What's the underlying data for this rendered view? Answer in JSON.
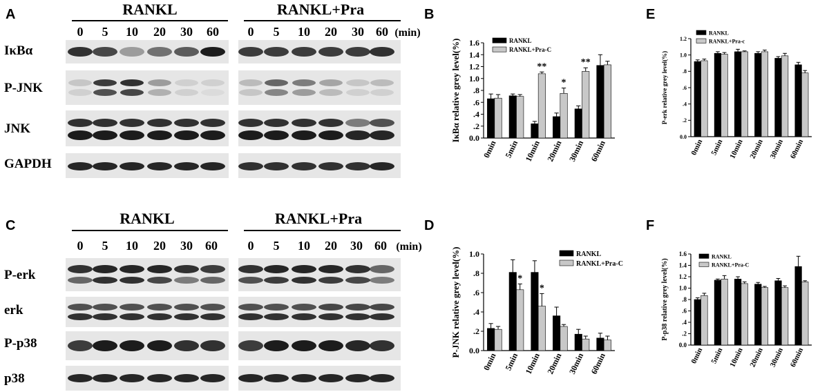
{
  "panels": {
    "A": {
      "letter": "A",
      "conditions": [
        "RANKL",
        "RANKL+Pra"
      ],
      "lanes": [
        "0",
        "5",
        "10",
        "20",
        "30",
        "60"
      ],
      "unit": "(min)",
      "rows": [
        "IκBα",
        "P-JNK",
        "JNK",
        "GAPDH"
      ]
    },
    "C": {
      "letter": "C",
      "conditions": [
        "RANKL",
        "RANKL+Pra"
      ],
      "lanes": [
        "0",
        "5",
        "10",
        "20",
        "30",
        "60"
      ],
      "unit": "(min)",
      "rows": [
        "P-erk",
        "erk",
        "P-p38",
        "p38"
      ]
    }
  },
  "chart_data": [
    {
      "id": "B",
      "letter": "B",
      "type": "bar",
      "categories": [
        "0min",
        "5min",
        "10min",
        "20min",
        "30min",
        "60min"
      ],
      "ylabel": "IκBα relative grey level(%)",
      "yticks": [
        "0.0",
        ".2",
        ".4",
        ".6",
        ".8",
        "1.0",
        "1.2",
        "1.4",
        "1.6"
      ],
      "ylim": [
        0,
        1.6
      ],
      "legend": "top-left",
      "series": [
        {
          "name": "RANKL",
          "color": "#000000",
          "values": [
            0.66,
            0.71,
            0.24,
            0.36,
            0.49,
            1.22
          ],
          "errors": [
            0.08,
            0.03,
            0.04,
            0.06,
            0.05,
            0.18
          ]
        },
        {
          "name": "RANKL+Pra-C",
          "color": "#c8c8c8",
          "values": [
            0.67,
            0.7,
            1.08,
            0.75,
            1.12,
            1.23
          ],
          "errors": [
            0.06,
            0.03,
            0.03,
            0.09,
            0.06,
            0.06
          ]
        }
      ],
      "annotations": [
        "",
        "",
        "**",
        "*",
        "**",
        ""
      ]
    },
    {
      "id": "E",
      "letter": "E",
      "type": "bar",
      "categories": [
        "0min",
        "5min",
        "10min",
        "20min",
        "30min",
        "60min"
      ],
      "ylabel": "P-erk relative grey level(%)",
      "yticks": [
        "0.0",
        ".2",
        ".4",
        ".6",
        ".8",
        "1.0",
        "1.2"
      ],
      "ylim": [
        0,
        1.2
      ],
      "legend": "top-left",
      "series": [
        {
          "name": "RANKL",
          "color": "#000000",
          "values": [
            0.92,
            1.02,
            1.04,
            1.02,
            0.96,
            0.88
          ],
          "errors": [
            0.02,
            0.02,
            0.03,
            0.02,
            0.02,
            0.03
          ]
        },
        {
          "name": "RANKL+Pra-c",
          "color": "#c8c8c8",
          "values": [
            0.93,
            1.01,
            1.04,
            1.04,
            0.99,
            0.78
          ],
          "errors": [
            0.02,
            0.02,
            0.01,
            0.02,
            0.03,
            0.03
          ]
        }
      ],
      "annotations": [
        "",
        "",
        "",
        "",
        "",
        ""
      ]
    },
    {
      "id": "D",
      "letter": "D",
      "type": "bar",
      "categories": [
        "0min",
        "5min",
        "10min",
        "20min",
        "30min",
        "60min"
      ],
      "ylabel": "P-JNK relative grey level(%)",
      "yticks": [
        "0.0",
        ".2",
        ".4",
        ".6",
        ".8",
        "1.0"
      ],
      "ylim": [
        0,
        1.0
      ],
      "legend": "top-right",
      "series": [
        {
          "name": "RANKL",
          "color": "#000000",
          "values": [
            0.23,
            0.81,
            0.81,
            0.36,
            0.17,
            0.13
          ],
          "errors": [
            0.05,
            0.13,
            0.12,
            0.09,
            0.05,
            0.05
          ]
        },
        {
          "name": "RANKL+Pra-C",
          "color": "#c8c8c8",
          "values": [
            0.22,
            0.63,
            0.46,
            0.25,
            0.12,
            0.11
          ],
          "errors": [
            0.03,
            0.06,
            0.13,
            0.02,
            0.03,
            0.04
          ]
        }
      ],
      "annotations": [
        "",
        "*",
        "*",
        "",
        "",
        ""
      ]
    },
    {
      "id": "F",
      "letter": "F",
      "type": "bar",
      "categories": [
        "0min",
        "5min",
        "10min",
        "20min",
        "30min",
        "60min"
      ],
      "ylabel": "P-p38 relative grey level(%)",
      "yticks": [
        "0.0",
        ".2",
        ".4",
        ".6",
        ".8",
        "1.0",
        "1.2",
        "1.4",
        "1.6"
      ],
      "ylim": [
        0,
        1.6
      ],
      "legend": "top-left",
      "series": [
        {
          "name": "RANKL",
          "color": "#000000",
          "values": [
            0.8,
            1.14,
            1.16,
            1.07,
            1.13,
            1.38
          ],
          "errors": [
            0.03,
            0.02,
            0.04,
            0.03,
            0.04,
            0.18
          ]
        },
        {
          "name": "RANKL+Pra-C",
          "color": "#c8c8c8",
          "values": [
            0.87,
            1.16,
            1.08,
            1.01,
            1.01,
            1.11
          ],
          "errors": [
            0.04,
            0.06,
            0.03,
            0.02,
            0.03,
            0.02
          ]
        }
      ],
      "annotations": [
        "",
        "",
        "",
        "",
        "",
        ""
      ]
    }
  ]
}
